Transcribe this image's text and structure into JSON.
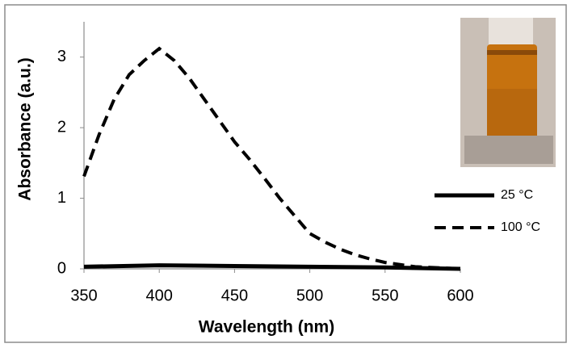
{
  "chart_data": {
    "type": "line",
    "x_label": "Wavelength (nm)",
    "y_label": "Absorbance (a.u.)",
    "xlim": [
      350,
      600
    ],
    "xticks": [
      350,
      400,
      450,
      500,
      550,
      600
    ],
    "ylim": [
      0,
      3.5
    ],
    "yticks": [
      0,
      1,
      2,
      3
    ],
    "legend": "right",
    "series": [
      {
        "name": "25 °C",
        "color": "#000000",
        "dash": "solid",
        "x": [
          350,
          400,
          450,
          500,
          550,
          600
        ],
        "values": [
          0.03,
          0.05,
          0.04,
          0.03,
          0.02,
          0.0
        ]
      },
      {
        "name": "100 °C",
        "color": "#000000",
        "dash": "dashed",
        "x": [
          350,
          360,
          370,
          380,
          390,
          400,
          410,
          420,
          430,
          440,
          450,
          460,
          470,
          480,
          490,
          500,
          510,
          520,
          530,
          540,
          550,
          560,
          570,
          580,
          590,
          600
        ],
        "values": [
          1.31,
          1.9,
          2.4,
          2.75,
          2.95,
          3.12,
          2.95,
          2.7,
          2.4,
          2.1,
          1.8,
          1.55,
          1.28,
          1.0,
          0.75,
          0.5,
          0.38,
          0.28,
          0.2,
          0.14,
          0.09,
          0.06,
          0.03,
          0.02,
          0.01,
          0.0
        ]
      }
    ]
  }
}
